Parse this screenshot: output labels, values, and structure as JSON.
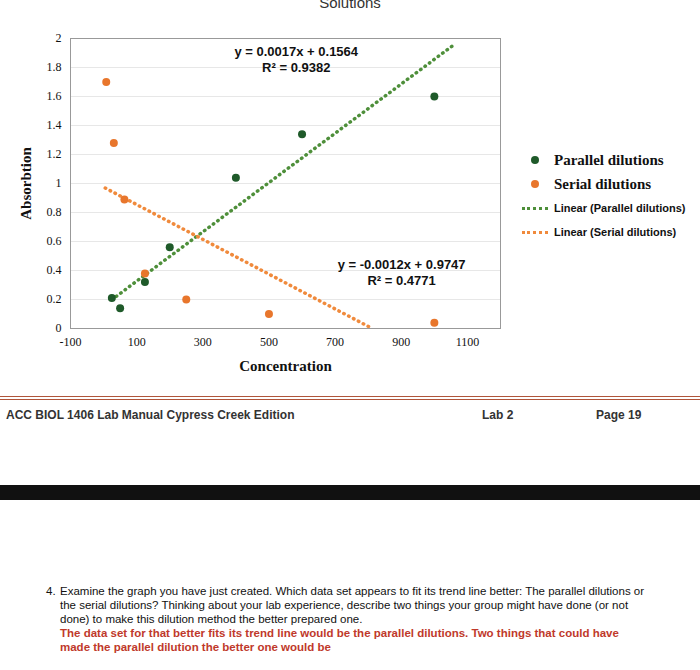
{
  "header": {
    "title": "Solutions"
  },
  "chart_data": {
    "type": "scatter",
    "xlabel": "Concentration",
    "ylabel": "Absorbtion",
    "xlim": [
      -100,
      1200
    ],
    "xticks": [
      -100,
      100,
      300,
      500,
      700,
      900,
      1100
    ],
    "ylim": [
      0,
      2
    ],
    "yticks": [
      0,
      0.2,
      0.4,
      0.6,
      0.8,
      1,
      1.2,
      1.4,
      1.6,
      1.8,
      2
    ],
    "grid": true,
    "legend": "right",
    "series": [
      {
        "name": "Parallel dilutions",
        "color": "#1f5a2a",
        "marker": "circle",
        "x": [
          25,
          50,
          125,
          200,
          400,
          600,
          1000
        ],
        "values": [
          0.21,
          0.14,
          0.32,
          0.56,
          1.04,
          1.34,
          1.6
        ]
      },
      {
        "name": "Serial dilutions",
        "color": "#e8762c",
        "marker": "circle",
        "x": [
          8,
          31,
          63,
          125,
          250,
          500,
          1000
        ],
        "values": [
          1.7,
          1.28,
          0.89,
          0.38,
          0.2,
          0.1,
          0.04
        ]
      }
    ],
    "trendlines": [
      {
        "name": "Linear (Parallel dilutions)",
        "color": "#4e8f3a",
        "line_style": "dotted",
        "slope": 0.0017,
        "intercept": 0.1564,
        "x": [
          25,
          1060
        ],
        "equation": "y = 0.0017x + 0.1564",
        "r2_label": "R² = 0.9382"
      },
      {
        "name": "Linear (Serial dilutions)",
        "color": "#f08a3c",
        "line_style": "dotted",
        "slope": -0.0012,
        "intercept": 0.9747,
        "x": [
          5,
          812
        ],
        "equation": "y = -0.0012x + 0.9747",
        "r2_label": "R² = 0.4771"
      }
    ]
  },
  "footer": {
    "left": "ACC BIOL 1406 Lab Manual Cypress Creek Edition",
    "center": "Lab 2",
    "right": "Page 19"
  },
  "question": {
    "number": "4.",
    "text": "Examine the graph you have just created. Which data set appears to fit its trend line better: The parallel dilutions or the serial dilutions? Thinking about your lab experience, describe two things your group might have done (or not done) to make this dilution method the better prepared one.",
    "answer": "The data set for that better fits its trend line would be the parallel dilutions. Two things that could have made the parallel dilution the better one would be"
  }
}
